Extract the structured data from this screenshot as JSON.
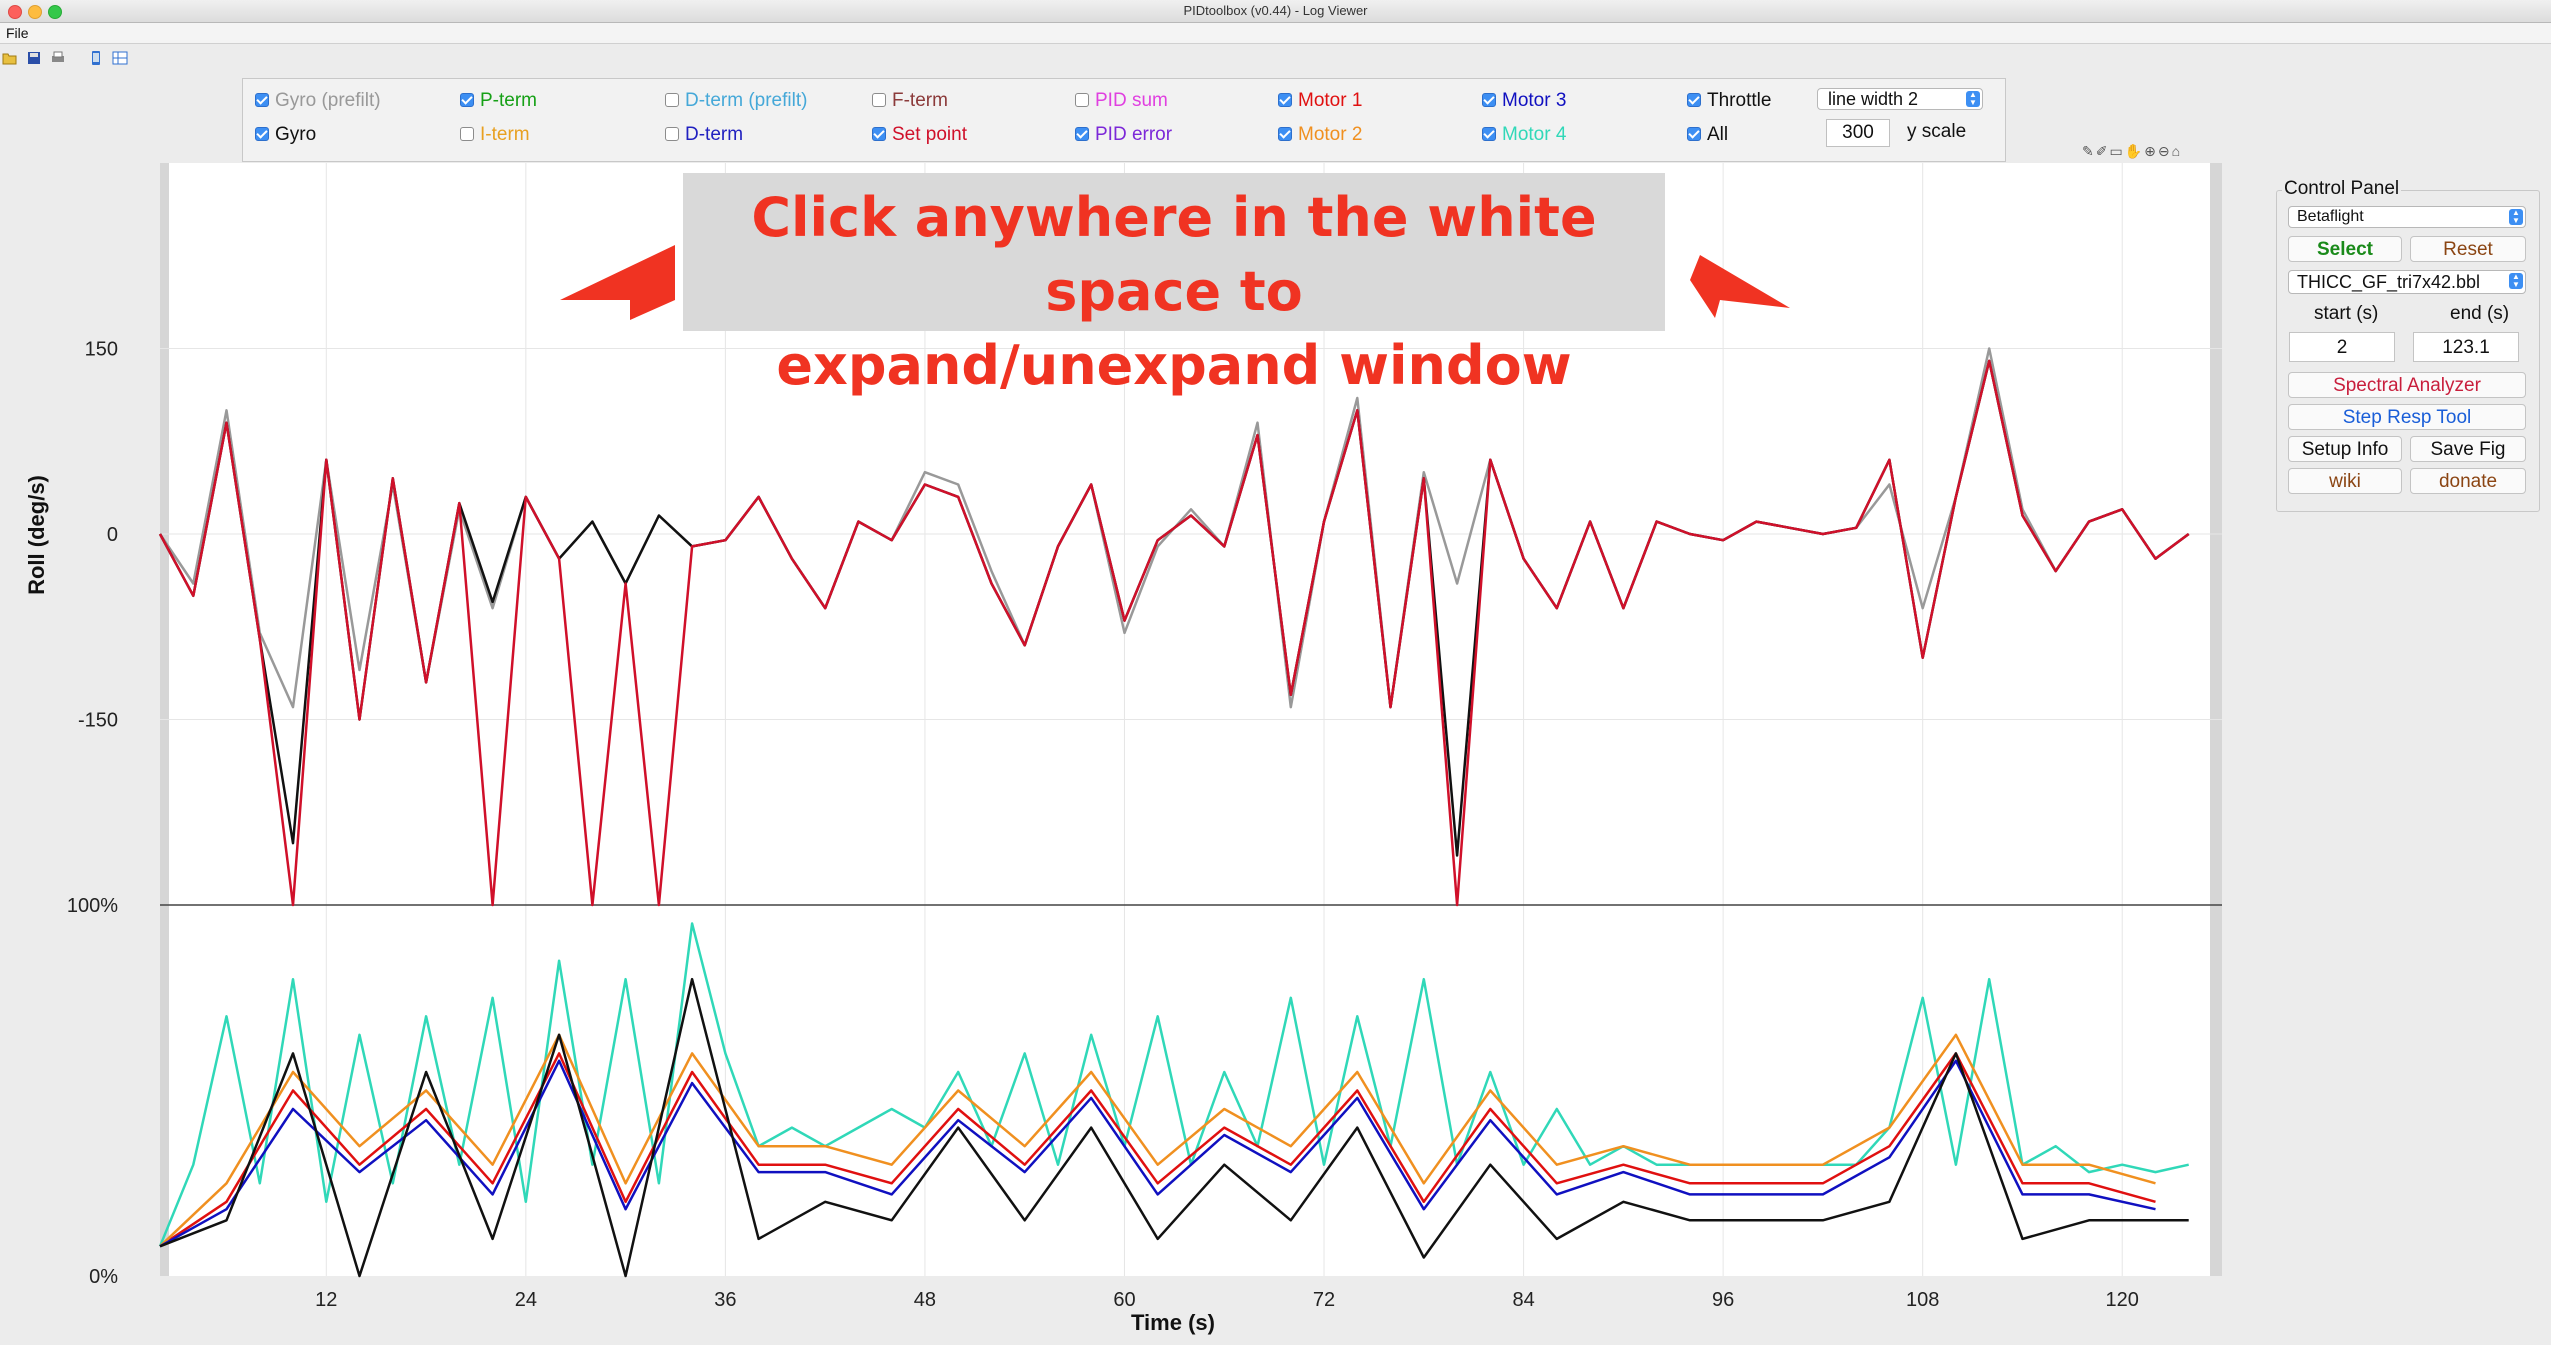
{
  "window": {
    "title": "PIDtoolbox (v0.44) - Log Viewer"
  },
  "menu": {
    "file": "File"
  },
  "toolbar_icons": [
    "open-icon",
    "save-icon",
    "print-icon",
    "phone-icon",
    "layout-icon"
  ],
  "checkboxes": [
    {
      "label": "Gyro (prefilt)",
      "checked": true,
      "color": "#999999"
    },
    {
      "label": "Gyro",
      "checked": true,
      "color": "#111111"
    },
    {
      "label": "P-term",
      "checked": true,
      "color": "#16a016"
    },
    {
      "label": "I-term",
      "checked": false,
      "color": "#e8a020"
    },
    {
      "label": "D-term (prefilt)",
      "checked": false,
      "color": "#45a8d8"
    },
    {
      "label": "D-term",
      "checked": false,
      "color": "#2020c0"
    },
    {
      "label": "F-term",
      "checked": false,
      "color": "#8b3a3a"
    },
    {
      "label": "Set point",
      "checked": true,
      "color": "#d0102a"
    },
    {
      "label": "PID sum",
      "checked": false,
      "color": "#e040e0"
    },
    {
      "label": "PID error",
      "checked": true,
      "color": "#7c28d8"
    },
    {
      "label": "Motor 1",
      "checked": true,
      "color": "#e01010"
    },
    {
      "label": "Motor 2",
      "checked": true,
      "color": "#f09020"
    },
    {
      "label": "Motor 3",
      "checked": true,
      "color": "#1010c0"
    },
    {
      "label": "Motor 4",
      "checked": true,
      "color": "#30d8b8"
    },
    {
      "label": "Throttle",
      "checked": true,
      "color": "#111111"
    },
    {
      "label": "All",
      "checked": true,
      "color": "#111111"
    }
  ],
  "line_width": {
    "value": "line width 2"
  },
  "yscale": {
    "value": "300",
    "label": "y scale"
  },
  "annotation": {
    "line1": "Click anywhere in the white space to",
    "line2": "expand/unexpand window"
  },
  "control_panel": {
    "title": "Control Panel",
    "firmware": "Betaflight",
    "select_label": "Select",
    "reset_label": "Reset",
    "file": "THICC_GF_tri7x42.bbl",
    "start_label": "start (s)",
    "end_label": "end (s)",
    "start_value": "2",
    "end_value": "123.1",
    "spectral_label": "Spectral Analyzer",
    "step_label": "Step Resp Tool",
    "setup_label": "Setup Info",
    "savefig_label": "Save Fig",
    "wiki_label": "wiki",
    "donate_label": "donate",
    "colors": {
      "select": "#1a8a1a",
      "reset": "#8b4513",
      "spectral": "#c81e3c",
      "step": "#1a5ed8",
      "wiki": "#8b4513",
      "donate": "#8b4513"
    }
  },
  "chart_data": [
    {
      "type": "line",
      "ylabel": "Roll (deg/s)",
      "yticks": [
        "150",
        "0",
        "-150"
      ],
      "ylim": [
        -300,
        300
      ],
      "xlim": [
        2,
        126
      ],
      "series": [
        {
          "name": "Gyro (prefilt)",
          "color": "#999999",
          "x": [
            2,
            4,
            6,
            8,
            10,
            12,
            14,
            16,
            18,
            20,
            22,
            24,
            26,
            28,
            30,
            32,
            34,
            36,
            38,
            40,
            42,
            44,
            46,
            48,
            50,
            52,
            54,
            56,
            58,
            60,
            62,
            64,
            66,
            68,
            70,
            72,
            74,
            76,
            78,
            80,
            82,
            84,
            86,
            88,
            90,
            92,
            94,
            96,
            98,
            100,
            102,
            104,
            106,
            108,
            110,
            112,
            114,
            116,
            118,
            120,
            122,
            124
          ],
          "y": [
            0,
            -40,
            100,
            -80,
            -140,
            60,
            -110,
            40,
            -120,
            20,
            -60,
            30,
            -20,
            10,
            -40,
            15,
            -10,
            -5,
            30,
            -20,
            -60,
            10,
            -5,
            50,
            40,
            -30,
            -90,
            -10,
            40,
            -80,
            -10,
            20,
            -10,
            90,
            -140,
            10,
            110,
            -140,
            50,
            -40,
            60,
            -20,
            -60,
            10,
            -60,
            10,
            0,
            -5,
            10,
            5,
            0,
            5,
            40,
            -60,
            30,
            150,
            20,
            -30,
            10,
            20,
            -20,
            0
          ]
        },
        {
          "name": "Gyro",
          "color": "#111111",
          "x": [
            2,
            4,
            6,
            8,
            10,
            12,
            14,
            16,
            18,
            20,
            22,
            24,
            26,
            28,
            30,
            32,
            34,
            36,
            38,
            40,
            42,
            44,
            46,
            48,
            50,
            52,
            54,
            56,
            58,
            60,
            62,
            64,
            66,
            68,
            70,
            72,
            74,
            76,
            78,
            80,
            82,
            84,
            86,
            88,
            90,
            92,
            94,
            96,
            98,
            100,
            102,
            104,
            106,
            108,
            110,
            112,
            114,
            116,
            118,
            120,
            122,
            124
          ],
          "y": [
            0,
            -50,
            90,
            -85,
            -250,
            60,
            -150,
            45,
            -120,
            25,
            -55,
            30,
            -20,
            10,
            -40,
            15,
            -10,
            -5,
            30,
            -20,
            -60,
            10,
            -5,
            40,
            30,
            -40,
            -90,
            -10,
            40,
            -70,
            -5,
            15,
            -10,
            80,
            -130,
            10,
            100,
            -140,
            45,
            -260,
            60,
            -20,
            -60,
            10,
            -60,
            10,
            0,
            -5,
            10,
            5,
            0,
            5,
            60,
            -100,
            30,
            140,
            15,
            -30,
            10,
            20,
            -20,
            0
          ]
        },
        {
          "name": "Set point",
          "color": "#d0102a",
          "x": [
            2,
            4,
            6,
            8,
            10,
            12,
            14,
            16,
            18,
            20,
            22,
            24,
            26,
            28,
            30,
            32,
            34,
            36,
            38,
            40,
            42,
            44,
            46,
            48,
            50,
            52,
            54,
            56,
            58,
            60,
            62,
            64,
            66,
            68,
            70,
            72,
            74,
            76,
            78,
            80,
            82,
            84,
            86,
            88,
            90,
            92,
            94,
            96,
            98,
            100,
            102,
            104,
            106,
            108,
            110,
            112,
            114,
            116,
            118,
            120,
            122,
            124
          ],
          "y": [
            0,
            -50,
            90,
            -85,
            -300,
            60,
            -150,
            45,
            -120,
            25,
            -300,
            30,
            -20,
            -300,
            -40,
            -300,
            -10,
            -5,
            30,
            -20,
            -60,
            10,
            -5,
            40,
            30,
            -40,
            -90,
            -10,
            40,
            -70,
            -5,
            15,
            -10,
            80,
            -130,
            10,
            100,
            -140,
            45,
            -300,
            60,
            -20,
            -60,
            10,
            -60,
            10,
            0,
            -5,
            10,
            5,
            0,
            5,
            60,
            -100,
            30,
            140,
            15,
            -30,
            10,
            20,
            -20,
            0
          ]
        }
      ]
    },
    {
      "type": "line",
      "xlabel": "Time (s)",
      "xticks": [
        "12",
        "24",
        "36",
        "48",
        "60",
        "72",
        "84",
        "96",
        "108",
        "120"
      ],
      "yticks": [
        "100%",
        "0%"
      ],
      "ylim": [
        0,
        100
      ],
      "xlim": [
        2,
        126
      ],
      "series": [
        {
          "name": "Motor 4",
          "color": "#30d8b8",
          "x": [
            2,
            4,
            6,
            8,
            10,
            12,
            14,
            16,
            18,
            20,
            22,
            24,
            26,
            28,
            30,
            32,
            34,
            36,
            38,
            40,
            42,
            44,
            46,
            48,
            50,
            52,
            54,
            56,
            58,
            60,
            62,
            64,
            66,
            68,
            70,
            72,
            74,
            76,
            78,
            80,
            82,
            84,
            86,
            88,
            90,
            92,
            94,
            96,
            98,
            100,
            102,
            104,
            106,
            108,
            110,
            112,
            114,
            116,
            118,
            120,
            122,
            124
          ],
          "y": [
            8,
            30,
            70,
            25,
            80,
            20,
            65,
            25,
            70,
            30,
            75,
            20,
            85,
            30,
            80,
            25,
            95,
            60,
            35,
            40,
            35,
            40,
            45,
            40,
            55,
            35,
            60,
            30,
            65,
            35,
            70,
            30,
            55,
            35,
            75,
            30,
            70,
            35,
            80,
            30,
            55,
            30,
            45,
            30,
            35,
            30,
            30,
            30,
            30,
            30,
            30,
            30,
            40,
            75,
            30,
            80,
            30,
            35,
            28,
            30,
            28,
            30
          ]
        },
        {
          "name": "Motor 1",
          "color": "#e01010",
          "x": [
            2,
            6,
            10,
            14,
            18,
            22,
            26,
            30,
            34,
            38,
            42,
            46,
            50,
            54,
            58,
            62,
            66,
            70,
            74,
            78,
            82,
            86,
            90,
            94,
            98,
            102,
            106,
            110,
            114,
            118,
            122
          ],
          "y": [
            8,
            20,
            50,
            30,
            45,
            25,
            60,
            20,
            55,
            30,
            30,
            25,
            45,
            30,
            50,
            25,
            40,
            30,
            50,
            20,
            45,
            25,
            30,
            25,
            25,
            25,
            35,
            60,
            25,
            25,
            20
          ]
        },
        {
          "name": "Motor 2",
          "color": "#f09020",
          "x": [
            2,
            6,
            10,
            14,
            18,
            22,
            26,
            30,
            34,
            38,
            42,
            46,
            50,
            54,
            58,
            62,
            66,
            70,
            74,
            78,
            82,
            86,
            90,
            94,
            98,
            102,
            106,
            110,
            114,
            118,
            122
          ],
          "y": [
            8,
            25,
            55,
            35,
            50,
            30,
            65,
            25,
            60,
            35,
            35,
            30,
            50,
            35,
            55,
            30,
            45,
            35,
            55,
            25,
            50,
            30,
            35,
            30,
            30,
            30,
            40,
            65,
            30,
            30,
            25
          ]
        },
        {
          "name": "Motor 3",
          "color": "#1010c0",
          "x": [
            2,
            6,
            10,
            14,
            18,
            22,
            26,
            30,
            34,
            38,
            42,
            46,
            50,
            54,
            58,
            62,
            66,
            70,
            74,
            78,
            82,
            86,
            90,
            94,
            98,
            102,
            106,
            110,
            114,
            118,
            122
          ],
          "y": [
            8,
            18,
            45,
            28,
            42,
            22,
            58,
            18,
            52,
            28,
            28,
            22,
            42,
            28,
            48,
            22,
            38,
            28,
            48,
            18,
            42,
            22,
            28,
            22,
            22,
            22,
            32,
            58,
            22,
            22,
            18
          ]
        },
        {
          "name": "Throttle",
          "color": "#111111",
          "x": [
            2,
            6,
            10,
            14,
            18,
            22,
            26,
            30,
            34,
            38,
            42,
            46,
            50,
            54,
            58,
            62,
            66,
            70,
            74,
            78,
            82,
            86,
            90,
            94,
            98,
            102,
            106,
            110,
            114,
            118,
            122,
            124
          ],
          "y": [
            8,
            15,
            60,
            0,
            55,
            10,
            65,
            0,
            80,
            10,
            20,
            15,
            40,
            15,
            40,
            10,
            30,
            15,
            40,
            5,
            30,
            10,
            20,
            15,
            15,
            15,
            20,
            60,
            10,
            15,
            15,
            15
          ]
        }
      ],
      "ref_line_100": true
    }
  ]
}
